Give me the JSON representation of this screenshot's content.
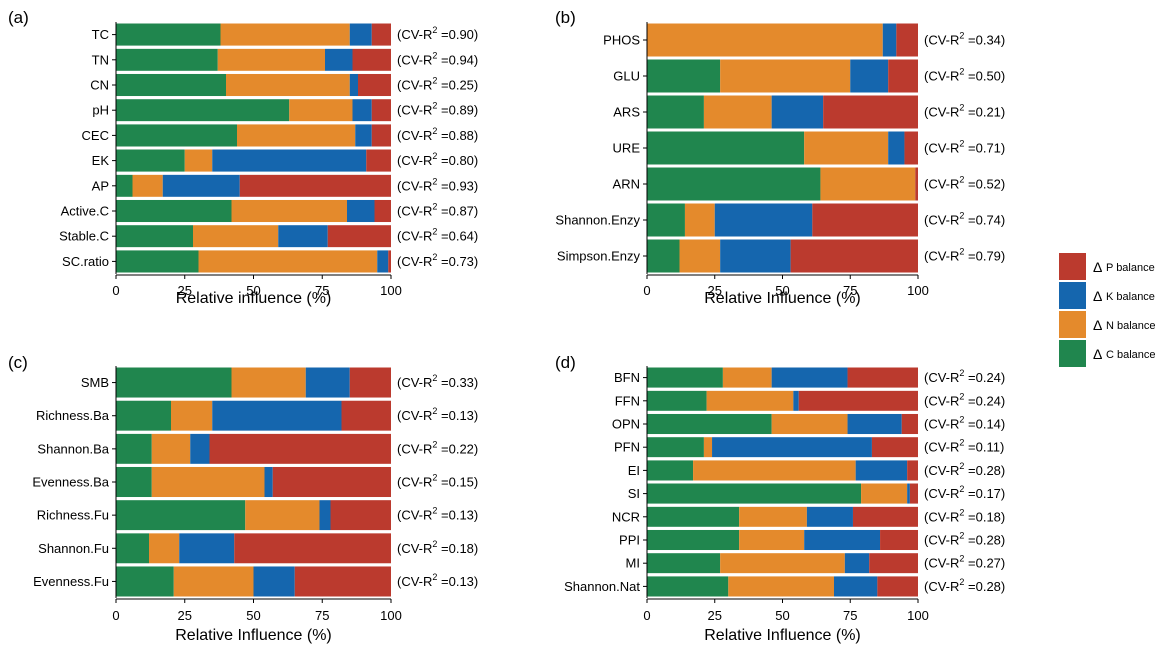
{
  "colors": {
    "C": "#20864e",
    "N": "#e48a2c",
    "K": "#1566ae",
    "P": "#bb3a2e",
    "separator": "#ffffff",
    "axis": "#000000"
  },
  "legend": [
    {
      "key": "P",
      "label": "P balance"
    },
    {
      "key": "K",
      "label": "K balance"
    },
    {
      "key": "N",
      "label": "N balance"
    },
    {
      "key": "C",
      "label": "C balance"
    }
  ],
  "legend_symbol": "Δ",
  "chart_data": [
    {
      "type": "bar",
      "orientation": "horizontal",
      "stacked": true,
      "panel": "(a)",
      "xlabel": "Relative influence (%)",
      "xlim": [
        0,
        100
      ],
      "xticks": [
        "0",
        "25",
        "50",
        "75",
        "100"
      ],
      "categories": [
        "TC",
        "TN",
        "CN",
        "pH",
        "CEC",
        "EK",
        "AP",
        "Active.C",
        "Stable.C",
        "SC.ratio"
      ],
      "annotations": [
        "(CV-R2 =0.90)",
        "(CV-R2 =0.94)",
        "(CV-R2 =0.25)",
        "(CV-R2 =0.89)",
        "(CV-R2 =0.88)",
        "(CV-R2 =0.80)",
        "(CV-R2 =0.93)",
        "(CV-R2 =0.87)",
        "(CV-R2 =0.64)",
        "(CV-R2 =0.73)"
      ],
      "series": [
        {
          "key": "C",
          "values": [
            38,
            37,
            40,
            63,
            44,
            25,
            6,
            42,
            28,
            30
          ]
        },
        {
          "key": "N",
          "values": [
            47,
            39,
            45,
            23,
            43,
            10,
            11,
            42,
            31,
            65
          ]
        },
        {
          "key": "K",
          "values": [
            8,
            10,
            3,
            7,
            6,
            56,
            28,
            10,
            18,
            4
          ]
        },
        {
          "key": "P",
          "values": [
            7,
            14,
            12,
            7,
            7,
            9,
            55,
            6,
            23,
            1
          ]
        }
      ]
    },
    {
      "type": "bar",
      "orientation": "horizontal",
      "stacked": true,
      "panel": "(b)",
      "xlabel": "Relative Influence (%)",
      "xlim": [
        0,
        100
      ],
      "xticks": [
        "0",
        "25",
        "50",
        "75",
        "100"
      ],
      "categories": [
        "PHOS",
        "GLU",
        "ARS",
        "URE",
        "ARN",
        "Shannon.Enzy",
        "Simpson.Enzy"
      ],
      "annotations": [
        "(CV-R2 =0.34)",
        "(CV-R2 =0.50)",
        "(CV-R2 =0.21)",
        "(CV-R2 =0.71)",
        "(CV-R2 =0.52)",
        "(CV-R2 =0.74)",
        "(CV-R2 =0.79)"
      ],
      "series": [
        {
          "key": "C",
          "values": [
            0,
            27,
            21,
            58,
            64,
            14,
            12
          ]
        },
        {
          "key": "N",
          "values": [
            87,
            48,
            25,
            31,
            35,
            11,
            15
          ]
        },
        {
          "key": "K",
          "values": [
            5,
            14,
            19,
            6,
            0,
            36,
            26
          ]
        },
        {
          "key": "P",
          "values": [
            8,
            11,
            35,
            5,
            1,
            39,
            47
          ]
        }
      ]
    },
    {
      "type": "bar",
      "orientation": "horizontal",
      "stacked": true,
      "panel": "(c)",
      "xlabel": "Relative Influence (%)",
      "xlim": [
        0,
        100
      ],
      "xticks": [
        "0",
        "25",
        "50",
        "75",
        "100"
      ],
      "categories": [
        "SMB",
        "Richness.Ba",
        "Shannon.Ba",
        "Evenness.Ba",
        "Richness.Fu",
        "Shannon.Fu",
        "Evenness.Fu"
      ],
      "annotations": [
        "(CV-R2 =0.33)",
        "(CV-R2 =0.13)",
        "(CV-R2 =0.22)",
        "(CV-R2 =0.15)",
        "(CV-R2 =0.13)",
        "(CV-R2 =0.18)",
        "(CV-R2 =0.13)"
      ],
      "series": [
        {
          "key": "C",
          "values": [
            42,
            20,
            13,
            13,
            47,
            12,
            21
          ]
        },
        {
          "key": "N",
          "values": [
            27,
            15,
            14,
            41,
            27,
            11,
            29
          ]
        },
        {
          "key": "K",
          "values": [
            16,
            47,
            7,
            3,
            4,
            20,
            15
          ]
        },
        {
          "key": "P",
          "values": [
            15,
            18,
            66,
            43,
            22,
            57,
            35
          ]
        }
      ]
    },
    {
      "type": "bar",
      "orientation": "horizontal",
      "stacked": true,
      "panel": "(d)",
      "xlabel": "Relative Influence (%)",
      "xlim": [
        0,
        100
      ],
      "xticks": [
        "0",
        "25",
        "50",
        "75",
        "100"
      ],
      "categories": [
        "BFN",
        "FFN",
        "OPN",
        "PFN",
        "EI",
        "SI",
        "NCR",
        "PPI",
        "MI",
        "Shannon.Nat"
      ],
      "annotations": [
        "(CV-R2 =0.24)",
        "(CV-R2 =0.24)",
        "(CV-R2 =0.14)",
        "(CV-R2 =0.11)",
        "(CV-R2 =0.28)",
        "(CV-R2 =0.17)",
        "(CV-R2 =0.18)",
        "(CV-R2 =0.28)",
        "(CV-R2 =0.27)",
        "(CV-R2 =0.28)"
      ],
      "series": [
        {
          "key": "C",
          "values": [
            28,
            22,
            46,
            21,
            17,
            79,
            34,
            34,
            27,
            30
          ]
        },
        {
          "key": "N",
          "values": [
            18,
            32,
            28,
            3,
            60,
            17,
            25,
            24,
            46,
            39
          ]
        },
        {
          "key": "K",
          "values": [
            28,
            2,
            20,
            59,
            19,
            1,
            17,
            28,
            9,
            16
          ]
        },
        {
          "key": "P",
          "values": [
            26,
            44,
            6,
            17,
            4,
            3,
            24,
            14,
            18,
            15
          ]
        }
      ]
    }
  ]
}
